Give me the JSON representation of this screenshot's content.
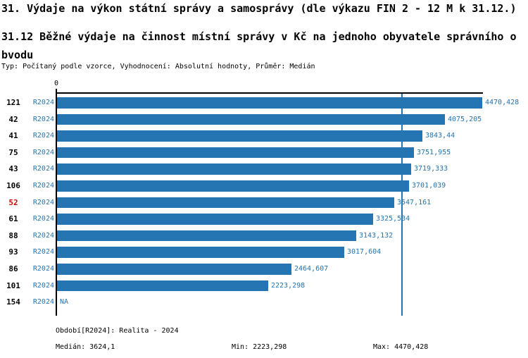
{
  "header": {
    "title": "31. Výdaje na výkon státní správy a samosprávy (dle výkazu FIN 2 - 12 M k 31.12.)",
    "subtitle": "31.12 Běžné výdaje na činnost místní správy v Kč na jednoho obyvatele správního obvodu",
    "meta": "Typ: Počítaný podle vzorce, Vyhodnocení: Absolutní hodnoty, Průměr: Medián"
  },
  "chart_data": {
    "type": "bar",
    "orientation": "horizontal",
    "axis_zero_label": "0",
    "xlim": [
      0,
      4470.428
    ],
    "xmax": 4470.428,
    "median_value": 3624.1,
    "grid": false,
    "rows": [
      {
        "rank": "121",
        "period": "R2024",
        "value": 4470.428,
        "label": "4470,428",
        "highlight": false
      },
      {
        "rank": "42",
        "period": "R2024",
        "value": 4075.205,
        "label": "4075,205",
        "highlight": false
      },
      {
        "rank": "41",
        "period": "R2024",
        "value": 3843.44,
        "label": "3843,44",
        "highlight": false
      },
      {
        "rank": "75",
        "period": "R2024",
        "value": 3751.955,
        "label": "3751,955",
        "highlight": false
      },
      {
        "rank": "43",
        "period": "R2024",
        "value": 3719.333,
        "label": "3719,333",
        "highlight": false
      },
      {
        "rank": "106",
        "period": "R2024",
        "value": 3701.039,
        "label": "3701,039",
        "highlight": false
      },
      {
        "rank": "52",
        "period": "R2024",
        "value": 3547.161,
        "label": "3547,161",
        "highlight": true
      },
      {
        "rank": "61",
        "period": "R2024",
        "value": 3325.534,
        "label": "3325,534",
        "highlight": false
      },
      {
        "rank": "88",
        "period": "R2024",
        "value": 3143.132,
        "label": "3143,132",
        "highlight": false
      },
      {
        "rank": "93",
        "period": "R2024",
        "value": 3017.604,
        "label": "3017,604",
        "highlight": false
      },
      {
        "rank": "86",
        "period": "R2024",
        "value": 2464.607,
        "label": "2464,607",
        "highlight": false
      },
      {
        "rank": "101",
        "period": "R2024",
        "value": 2223.298,
        "label": "2223,298",
        "highlight": false
      },
      {
        "rank": "154",
        "period": "R2024",
        "value": null,
        "label": "NA",
        "highlight": false
      }
    ],
    "colors": {
      "bar_blue": "#2475b2",
      "text_blue": "#2475b2",
      "highlight_red": "#d40000",
      "axis_black": "#000000"
    }
  },
  "footer": {
    "period_line": "Období[R2024]: Realita - 2024",
    "median": "Medián: 3624,1",
    "min": "Min: 2223,298",
    "max": "Max: 4470,428"
  }
}
